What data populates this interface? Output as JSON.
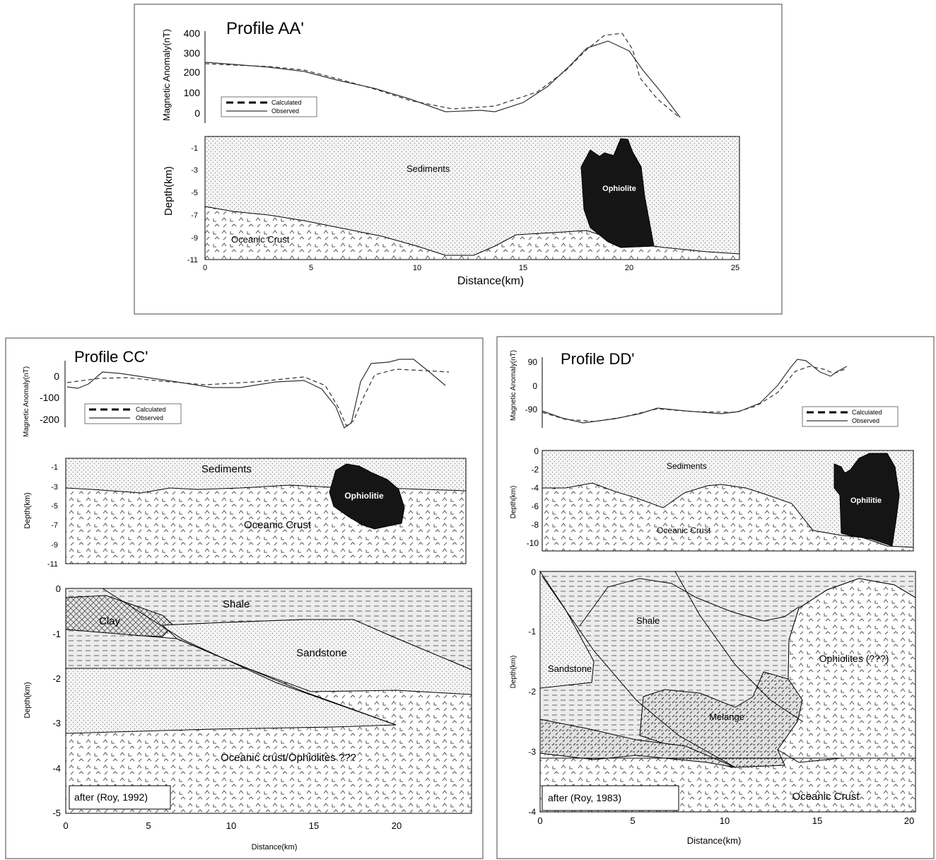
{
  "profiles": {
    "aa": {
      "title": "Profile AA'",
      "anomaly_axis_label": "Magnetic Anomaly(nT)",
      "anomaly_ticks": [
        "400",
        "300",
        "200",
        "100",
        "0"
      ],
      "depth_axis_label": "Depth(km)",
      "depth_ticks": [
        "-1",
        "-3",
        "-5",
        "-7",
        "-9",
        "-11"
      ],
      "distance_ticks": [
        "0",
        "5",
        "10",
        "15",
        "20",
        "25"
      ],
      "distance_label": "Distance(km)",
      "legend": {
        "calculated": "Calculated",
        "observed": "Observed"
      },
      "units": {
        "sediments": "Sediments",
        "ophiolite": "Ophiolite",
        "oceanic_crust": "Oceanic Crust"
      }
    },
    "cc": {
      "title": "Profile CC'",
      "anomaly_axis_label": "Magnetic Anomaly(nT)",
      "anomaly_ticks": [
        "0",
        "-100",
        "-200"
      ],
      "depth_axis_label": "Depth(km)",
      "depth_ticks": [
        "-1",
        "-3",
        "-5",
        "-7",
        "-9",
        "-11"
      ],
      "legend": {
        "calculated": "Calculated",
        "observed": "Observed"
      },
      "units": {
        "sediments": "Sediments",
        "ophiolite": "Ophiolitie",
        "oceanic_crust": "Oceanic Crust"
      },
      "section": {
        "depth_axis_label": "Depth(km)",
        "depth_ticks": [
          "0",
          "-1",
          "-2",
          "-3",
          "-4",
          "-5"
        ],
        "distance_ticks": [
          "0",
          "5",
          "10",
          "15",
          "20"
        ],
        "distance_label": "Distance(km)",
        "units": {
          "shale": "Shale",
          "clay": "Clay",
          "sandstone": "Sandstone",
          "basement": "Oceanic crust/Ophiolites ???"
        },
        "credit": "after (Roy, 1992)"
      }
    },
    "dd": {
      "title": "Profile DD'",
      "anomaly_axis_label": "Magnetic Anomaly(nT)",
      "anomaly_ticks": [
        "90",
        "0",
        "-90"
      ],
      "depth_axis_label": "Depth(km)",
      "depth_ticks": [
        "0",
        "-2",
        "-4",
        "-6",
        "-8",
        "-10"
      ],
      "legend": {
        "calculated": "Calculated",
        "observed": "Observed"
      },
      "units": {
        "sediments": "Sediments",
        "ophiolite": "Ophilitie",
        "oceanic_crust": "Oceanic Crust"
      },
      "section": {
        "depth_axis_label": "Depth(km)",
        "depth_ticks": [
          "0",
          "-1",
          "-2",
          "-3",
          "-4"
        ],
        "distance_ticks": [
          "0",
          "5",
          "10",
          "15",
          "20"
        ],
        "distance_label": "Distance(km)",
        "units": {
          "shale": "Shale",
          "sandstone": "Sandstone",
          "ophiolites": "Ophiolites (???)",
          "melange": "Melange",
          "oceanic_crust": "Oceanic Crust"
        },
        "credit": "after (Roy, 1983)"
      }
    }
  }
}
